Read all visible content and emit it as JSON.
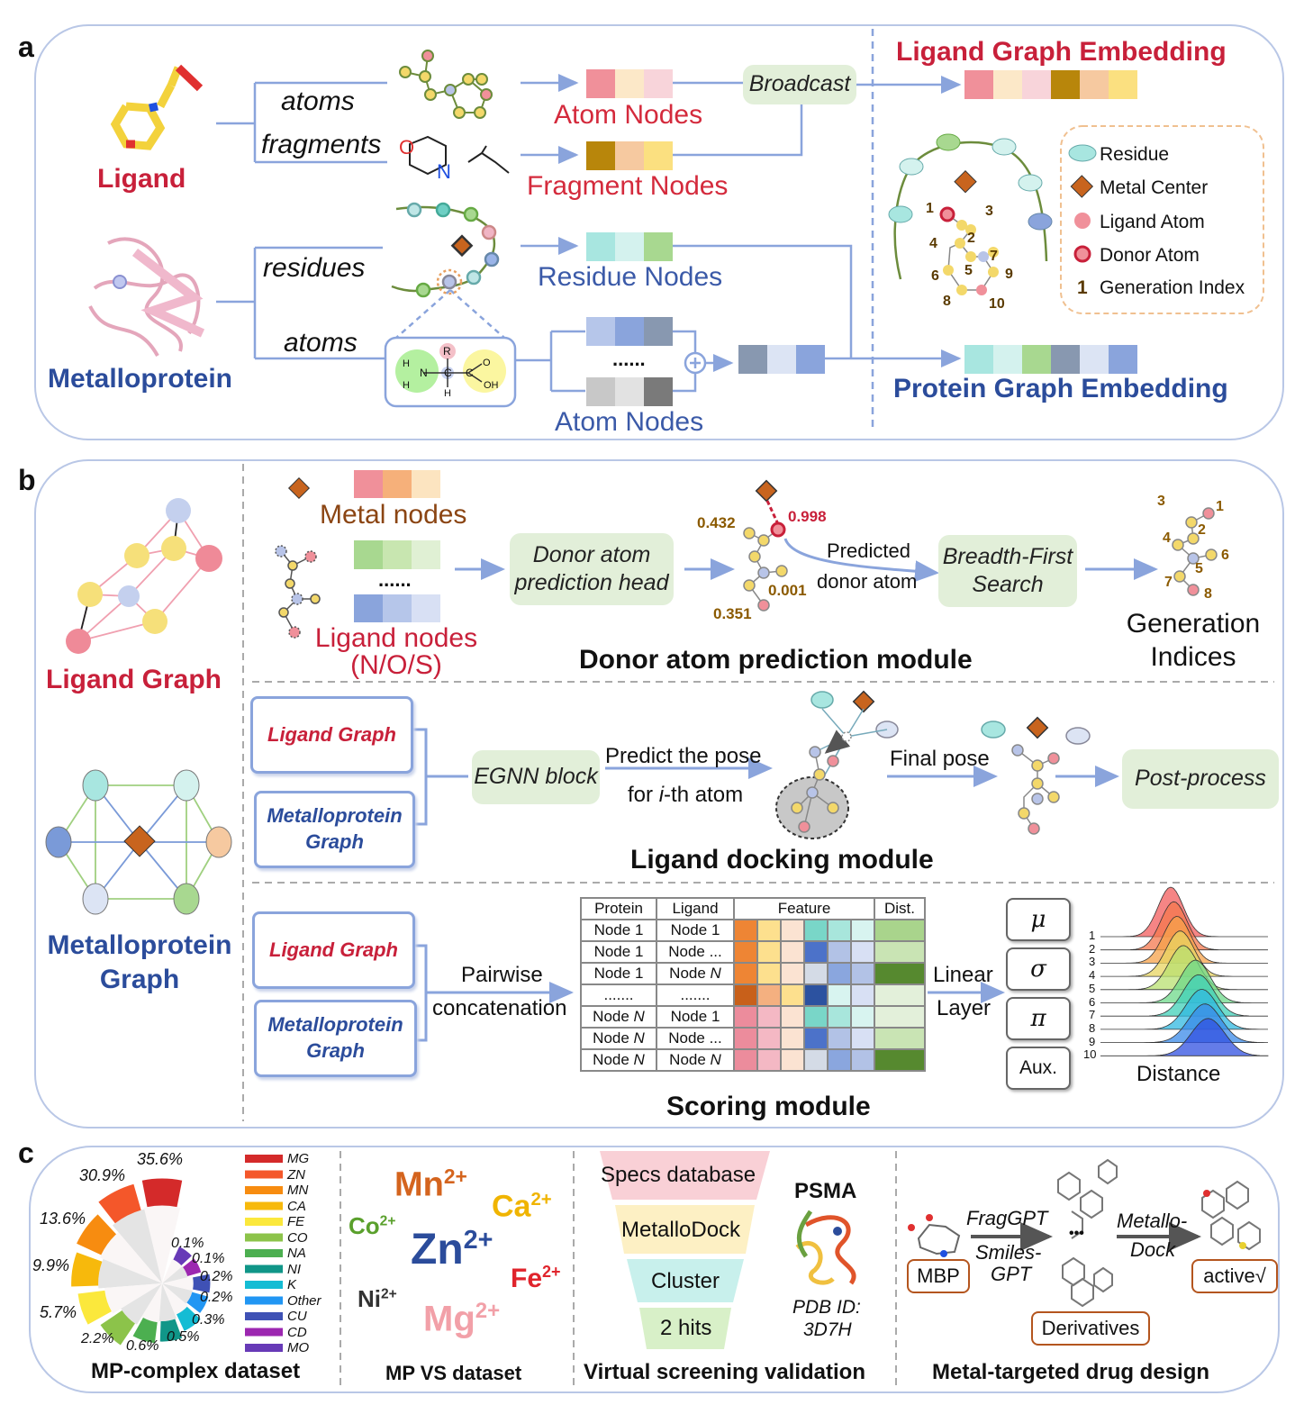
{
  "panel_a": {
    "label": "a",
    "ligand": "Ligand",
    "metalloprotein": "Metalloprotein",
    "atoms": "atoms",
    "fragments": "fragments",
    "residues": "residues",
    "atoms_protein": "atoms",
    "atom_nodes": "Atom Nodes",
    "fragment_nodes": "Fragment Nodes",
    "broadcast": "Broadcast",
    "residue_nodes": "Residue Nodes",
    "protein_atom_nodes": "Atom Nodes",
    "dots": "......",
    "fragment_atoms": {
      "O": "O",
      "N": "N"
    },
    "amino": {
      "H1": "H",
      "H2": "H",
      "N": "N",
      "C": "C",
      "R": "R",
      "C2": "C",
      "O": "O",
      "OH": "OH",
      "H3": "H"
    },
    "ligand_embedding": "Ligand Graph Embedding",
    "protein_embedding": "Protein Graph Embedding",
    "gen_indices": [
      "1",
      "2",
      "3",
      "4",
      "5",
      "6",
      "7",
      "8",
      "9",
      "10"
    ],
    "legend": {
      "residue": "Residue",
      "metal_center": "Metal Center",
      "ligand_atom": "Ligand Atom",
      "donor_atom": "Donor Atom",
      "index_symbol": "1",
      "generation_index": "Generation Index"
    }
  },
  "panel_b": {
    "label": "b",
    "ligand_graph": "Ligand Graph",
    "metalloprotein_graph_1": "Metalloprotein",
    "metalloprotein_graph_2": "Graph",
    "donor": {
      "metal_nodes": "Metal nodes",
      "dots": "......",
      "ligand_nodes_1": "Ligand nodes",
      "ligand_nodes_2": "(N/O/S)",
      "head_1": "Donor atom",
      "head_2": "prediction head",
      "scores": [
        "0.432",
        "0.998",
        "0.001",
        "0.351"
      ],
      "predicted_1": "Predicted",
      "predicted_2": "donor atom",
      "bfs_1": "Breadth-First",
      "bfs_2": "Search",
      "indices": [
        "1",
        "2",
        "3",
        "4",
        "5",
        "6",
        "7",
        "8"
      ],
      "gen_1": "Generation",
      "gen_2": "Indices",
      "title": "Donor atom prediction module"
    },
    "docking": {
      "ligand_graph": "Ligand Graph",
      "mp_graph_1": "Metalloprotein",
      "mp_graph_2": "Graph",
      "egnn": "EGNN block",
      "predict_1": "Predict the pose",
      "predict_2a": "for ",
      "predict_2b": "i",
      "predict_2c": "-th atom",
      "final_pose": "Final pose",
      "post_process": "Post-process",
      "title": "Ligand docking module"
    },
    "scoring": {
      "ligand_graph": "Ligand Graph",
      "mp_graph_1": "Metalloprotein",
      "mp_graph_2": "Graph",
      "pairwise_1": "Pairwise",
      "pairwise_2": "concatenation",
      "table_headers": [
        "Protein",
        "Ligand",
        "Feature",
        "Dist."
      ],
      "table_rows": [
        {
          "protein": "Node 1",
          "ligand": "Node 1",
          "features": [
            "#ee8534",
            "#fde08e",
            "#fbe3d2",
            "#79d6c8",
            "#a8e6dc",
            "#d8f4f0"
          ],
          "dist": "#a9d48c"
        },
        {
          "protein": "Node 1",
          "ligand": "Node ...",
          "features": [
            "#ee8534",
            "#fde08e",
            "#fbe3d2",
            "#4c72c9",
            "#b2c2e6",
            "#d8e0f4"
          ],
          "dist": "#c9e4b4"
        },
        {
          "protein": "Node 1",
          "ligand": "Node N",
          "features": [
            "#ee8534",
            "#fde08e",
            "#fbe3d2",
            "#d4dbe6",
            "#8aa6de",
            "#b2c2e6"
          ],
          "dist": "#56892f"
        },
        {
          "protein": ".......",
          "ligand": ".......",
          "features": [
            "#c8601a",
            "#f4b080",
            "#fde08e",
            "#2c52a0",
            "#d8f4f0",
            "#d8e0f4"
          ],
          "dist": "#e3f0da"
        },
        {
          "protein": "Node N",
          "ligand": "Node 1",
          "features": [
            "#ec8c9c",
            "#f4b8c4",
            "#fbe3d2",
            "#79d6c8",
            "#a8e6dc",
            "#d8f4f0"
          ],
          "dist": "#e3f0da"
        },
        {
          "protein": "Node N",
          "ligand": "Node ...",
          "features": [
            "#ec8c9c",
            "#f4b8c4",
            "#fbe3d2",
            "#4c72c9",
            "#b2c2e6",
            "#d8e0f4"
          ],
          "dist": "#c9e4b4"
        },
        {
          "protein": "Node N",
          "ligand": "Node N",
          "features": [
            "#ec8c9c",
            "#f4b8c4",
            "#fbe3d2",
            "#d4dbe6",
            "#8aa6de",
            "#b2c2e6"
          ],
          "dist": "#56892f"
        }
      ],
      "linear_1": "Linear",
      "linear_2": "Layer",
      "outputs": [
        "μ",
        "σ",
        "π",
        "Aux."
      ],
      "ridge_labels": [
        "1",
        "2",
        "3",
        "4",
        "5",
        "6",
        "7",
        "8",
        "9",
        "10"
      ],
      "distance": "Distance",
      "title": "Scoring module"
    }
  },
  "panel_c": {
    "label": "c",
    "mp_complex_title": "MP-complex dataset",
    "mp_vs_title": "MP VS dataset",
    "vs_title": "Virtual screening validation",
    "drug_title": "Metal-targeted drug design",
    "ions": [
      {
        "symbol": "Mn",
        "charge": "2+",
        "color": "#d4641e"
      },
      {
        "symbol": "Ca",
        "charge": "2+",
        "color": "#f0b400"
      },
      {
        "symbol": "Co",
        "charge": "2+",
        "color": "#5aa02c"
      },
      {
        "symbol": "Zn",
        "charge": "2+",
        "color": "#2b4c9b"
      },
      {
        "symbol": "Fe",
        "charge": "2+",
        "color": "#e0242c"
      },
      {
        "symbol": "Ni",
        "charge": "2+",
        "color": "#333333"
      },
      {
        "symbol": "Mg",
        "charge": "2+",
        "color": "#f2a0a8"
      }
    ],
    "funnel": [
      "Specs database",
      "MetalloDock",
      "Cluster",
      "2 hits"
    ],
    "psma": "PSMA",
    "pdb_1": "PDB ID:",
    "pdb_2": "3D7H",
    "drug": {
      "fraggpt": "FragGPT",
      "smiles_1": "Smiles-",
      "smiles_2": "GPT",
      "metallo_1": "Metallo-",
      "metallo_2": "Dock",
      "mbp": "MBP",
      "derivatives": "Derivatives",
      "active": "active√",
      "ellipsis": "•••"
    }
  },
  "chart_data": {
    "type": "pie",
    "title": "MP-complex dataset",
    "categories": [
      "MG",
      "ZN",
      "MN",
      "CA",
      "FE",
      "CO",
      "NA",
      "NI",
      "K",
      "Other",
      "CU",
      "CD",
      "MO"
    ],
    "values": [
      35.6,
      30.9,
      13.6,
      9.9,
      5.7,
      2.2,
      0.6,
      0.5,
      0.3,
      0.2,
      0.2,
      0.1,
      0.1
    ],
    "value_labels": [
      "35.6%",
      "30.9%",
      "13.6%",
      "9.9%",
      "5.7%",
      "2.2%",
      "0.6%",
      "0.5%",
      "0.3%",
      "0.2%",
      "0.2%",
      "0.1%",
      "0.1%"
    ],
    "colors": [
      "#d42a2a",
      "#f4572a",
      "#f78c10",
      "#f7b90c",
      "#fbe83c",
      "#8cc34a",
      "#4caf50",
      "#109688",
      "#14bcd4",
      "#2196f3",
      "#3f51b5",
      "#9c27b0",
      "#673ab7"
    ],
    "legend_position": "right"
  }
}
